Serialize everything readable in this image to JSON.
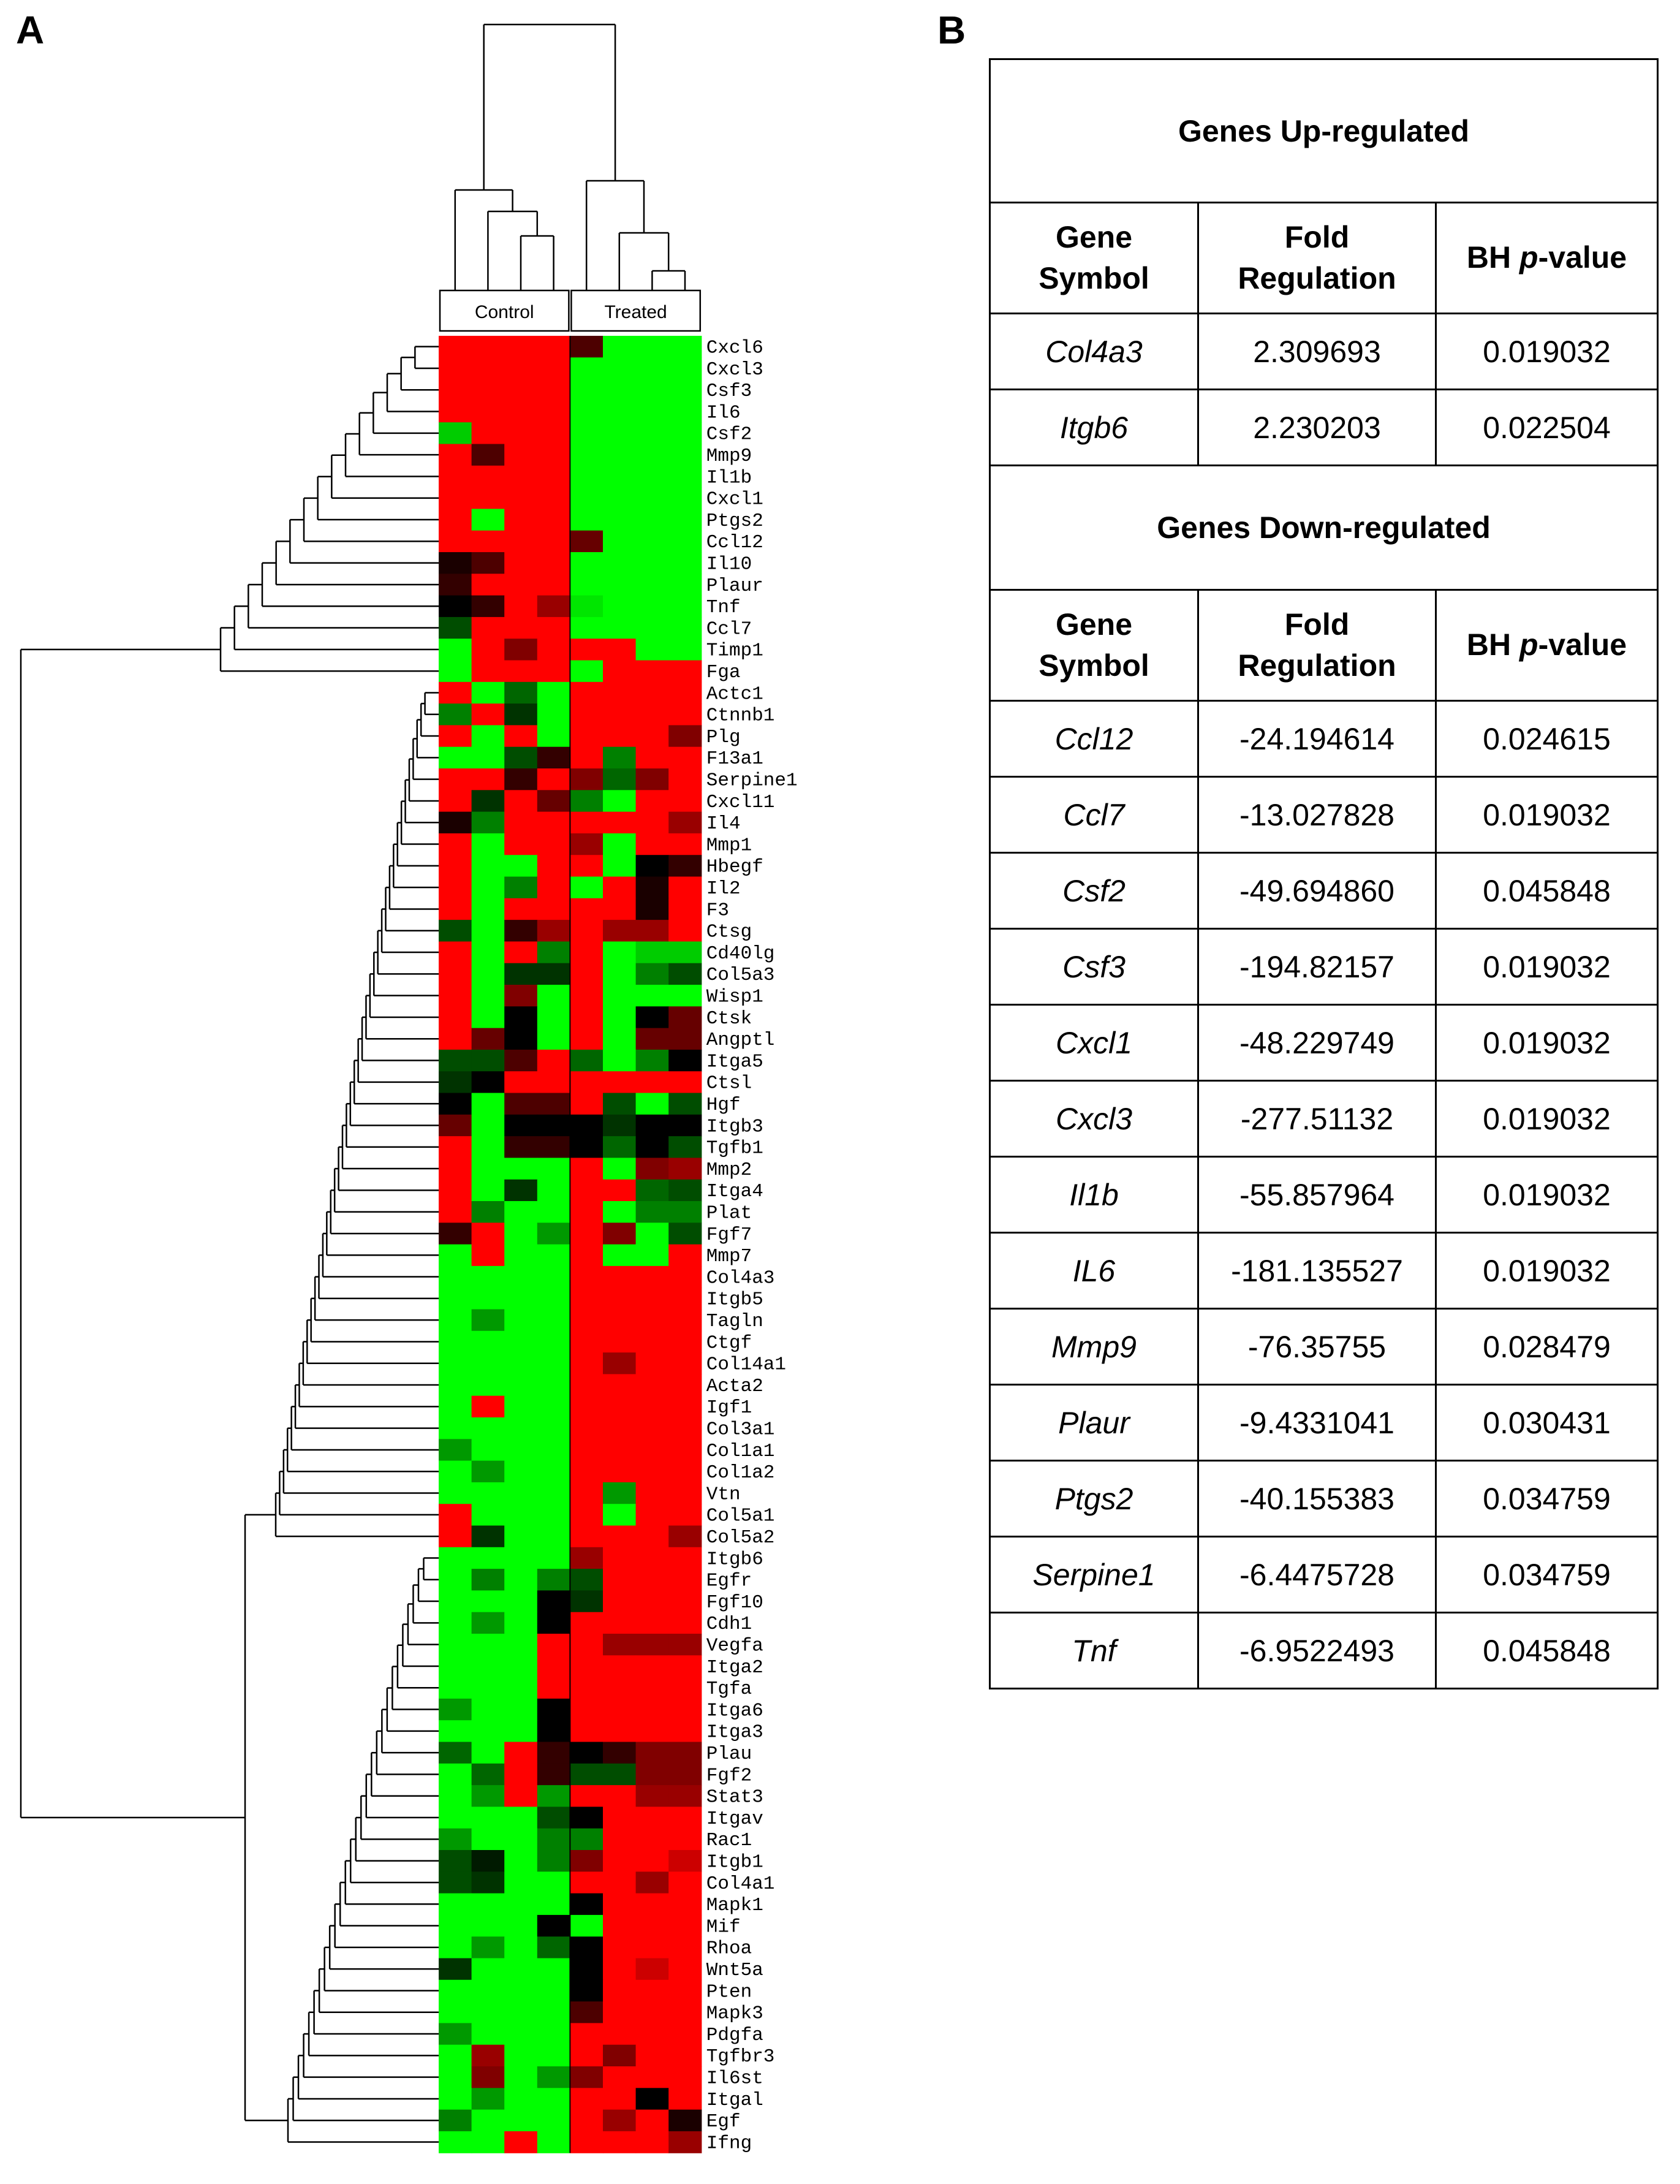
{
  "panels": {
    "a": "A",
    "b": "B"
  },
  "heatmap": {
    "groups": [
      "Control",
      "Treated"
    ],
    "genes": [
      "Cxcl6",
      "Cxcl3",
      "Csf3",
      "Il6",
      "Csf2",
      "Mmp9",
      "Il1b",
      "Cxcl1",
      "Ptgs2",
      "Ccl12",
      "Il10",
      "Plaur",
      "Tnf",
      "Ccl7",
      "Timp1",
      "Fga",
      "Actc1",
      "Ctnnb1",
      "Plg",
      "F13a1",
      "Serpine1",
      "Cxcl11",
      "Il4",
      "Mmp1",
      "Hbegf",
      "Il2",
      "F3",
      "Ctsg",
      "Cd40lg",
      "Col5a3",
      "Wisp1",
      "Ctsk",
      "Angptl",
      "Itga5",
      "Ctsl",
      "Hgf",
      "Itgb3",
      "Tgfb1",
      "Mmp2",
      "Itga4",
      "Plat",
      "Fgf7",
      "Mmp7",
      "Col4a3",
      "Itgb5",
      "Tagln",
      "Ctgf",
      "Col14a1",
      "Acta2",
      "Igf1",
      "Col3a1",
      "Col1a1",
      "Col1a2",
      "Vtn",
      "Col5a1",
      "Col5a2",
      "Itgb6",
      "Egfr",
      "Fgf10",
      "Cdh1",
      "Vegfa",
      "Itga2",
      "Tgfa",
      "Itga6",
      "Itga3",
      "Plau",
      "Fgf2",
      "Stat3",
      "Itgav",
      "Rac1",
      "Itgb1",
      "Col4a1",
      "Mapk1",
      "Mif",
      "Rhoa",
      "Wnt5a",
      "Pten",
      "Mapk3",
      "Pdgfa",
      "Tgfbr3",
      "Il6st",
      "Itgal",
      "Egf",
      "Ifng"
    ],
    "colors": {
      "up": "#ff0000",
      "down": "#00ff00",
      "neutral": "#000000"
    }
  },
  "chart_data": {
    "type": "heatmap",
    "groups": [
      "Control",
      "Treated"
    ],
    "samples_per_group": 4,
    "rows": [
      "Cxcl6",
      "Cxcl3",
      "Csf3",
      "Il6",
      "Csf2",
      "Mmp9",
      "Il1b",
      "Cxcl1",
      "Ptgs2",
      "Ccl12",
      "Il10",
      "Plaur",
      "Tnf",
      "Ccl7",
      "Timp1",
      "Fga",
      "Actc1",
      "Ctnnb1",
      "Plg",
      "F13a1",
      "Serpine1",
      "Cxcl11",
      "Il4",
      "Mmp1",
      "Hbegf",
      "Il2",
      "F3",
      "Ctsg",
      "Cd40lg",
      "Col5a3",
      "Wisp1",
      "Ctsk",
      "Angptl",
      "Itga5",
      "Ctsl",
      "Hgf",
      "Itgb3",
      "Tgfb1",
      "Mmp2",
      "Itga4",
      "Plat",
      "Fgf7",
      "Mmp7",
      "Col4a3",
      "Itgb5",
      "Tagln",
      "Ctgf",
      "Col14a1",
      "Acta2",
      "Igf1",
      "Col3a1",
      "Col1a1",
      "Col1a2",
      "Vtn",
      "Col5a1",
      "Col5a2",
      "Itgb6",
      "Egfr",
      "Fgf10",
      "Cdh1",
      "Vegfa",
      "Itga2",
      "Tgfa",
      "Itga6",
      "Itga3",
      "Plau",
      "Fgf2",
      "Stat3",
      "Itgav",
      "Rac1",
      "Itgb1",
      "Col4a1",
      "Mapk1",
      "Mif",
      "Rhoa",
      "Wnt5a",
      "Pten",
      "Mapk3",
      "Pdgfa",
      "Tgfbr3",
      "Il6st",
      "Itgal",
      "Egf",
      "Ifng"
    ],
    "values": [
      [
        1,
        1,
        1,
        1,
        0.3,
        -1,
        -1,
        -1
      ],
      [
        1,
        1,
        1,
        1,
        -1,
        -1,
        -1,
        -1
      ],
      [
        1,
        1,
        1,
        1,
        -1,
        -1,
        -1,
        -1
      ],
      [
        1,
        1,
        1,
        1,
        -1,
        -1,
        -1,
        -1
      ],
      [
        -0.8,
        1,
        1,
        1,
        -1,
        -1,
        -1,
        -1
      ],
      [
        1,
        0.3,
        1,
        1,
        -1,
        -1,
        -1,
        -1
      ],
      [
        1,
        1,
        1,
        1,
        -1,
        -1,
        -1,
        -1
      ],
      [
        1,
        1,
        1,
        1,
        -1,
        -1,
        -1,
        -1
      ],
      [
        1,
        -1,
        1,
        1,
        -1,
        -1,
        -1,
        -1
      ],
      [
        1,
        1,
        1,
        1,
        0.4,
        -1,
        -1,
        -1
      ],
      [
        0.1,
        0.3,
        1,
        1,
        -1,
        -1,
        -1,
        -1
      ],
      [
        0.2,
        1,
        1,
        1,
        -1,
        -1,
        -1,
        -1
      ],
      [
        0,
        0.2,
        1,
        0.6,
        -0.9,
        -1,
        -1,
        -1
      ],
      [
        -0.3,
        1,
        1,
        1,
        -1,
        -1,
        -1,
        -1
      ],
      [
        -1,
        1,
        0.5,
        1,
        1,
        1,
        -1,
        -1
      ],
      [
        -1,
        1,
        1,
        1,
        -1,
        1,
        1,
        1
      ],
      [
        1,
        -1,
        -0.4,
        -1,
        1,
        1,
        1,
        1
      ],
      [
        -0.5,
        1,
        -0.2,
        -1,
        1,
        1,
        1,
        1
      ],
      [
        1,
        -1,
        1,
        -1,
        1,
        1,
        1,
        0.5
      ],
      [
        -1,
        -1,
        -0.3,
        0.2,
        1,
        -0.5,
        1,
        1
      ],
      [
        1,
        1,
        0.2,
        1,
        0.5,
        -0.4,
        0.5,
        1
      ],
      [
        1,
        -0.2,
        1,
        0.4,
        -0.5,
        -1,
        1,
        1
      ],
      [
        0.1,
        -0.5,
        1,
        1,
        1,
        1,
        1,
        0.6
      ],
      [
        1,
        -1,
        1,
        1,
        0.6,
        -1,
        1,
        1
      ],
      [
        1,
        -1,
        -1,
        1,
        1,
        -1,
        0,
        0.2
      ],
      [
        1,
        -1,
        -0.5,
        1,
        -1,
        1,
        0.1,
        1
      ],
      [
        1,
        -1,
        1,
        1,
        1,
        1,
        0.1,
        1
      ],
      [
        -0.3,
        -1,
        0.2,
        0.6,
        1,
        0.6,
        0.6,
        1
      ],
      [
        1,
        -1,
        1,
        -0.5,
        1,
        -1,
        -0.8,
        -0.8
      ],
      [
        1,
        -1,
        -0.2,
        -0.2,
        1,
        -1,
        -0.5,
        -0.3
      ],
      [
        1,
        -1,
        0.5,
        -1,
        1,
        -1,
        -1,
        -1
      ],
      [
        1,
        -1,
        0,
        -1,
        1,
        -1,
        0,
        0.4
      ],
      [
        1,
        0.4,
        0,
        -1,
        1,
        -1,
        0.4,
        0.4
      ],
      [
        -0.3,
        -0.3,
        0.3,
        1,
        -0.4,
        -1,
        -0.5,
        0
      ],
      [
        -0.2,
        0,
        1,
        1,
        1,
        1,
        1,
        1
      ],
      [
        0,
        -1,
        0.3,
        0.3,
        1,
        -0.3,
        -1,
        -0.3
      ],
      [
        0.4,
        -1,
        0,
        0,
        0,
        -0.2,
        0,
        0
      ],
      [
        1,
        -1,
        0.2,
        0.2,
        0,
        -0.4,
        0,
        -0.3
      ],
      [
        1,
        -1,
        -1,
        -1,
        1,
        -1,
        0.5,
        0.6
      ],
      [
        1,
        -1,
        -0.2,
        -1,
        1,
        1,
        -0.4,
        -0.3
      ],
      [
        1,
        -0.5,
        -1,
        -1,
        1,
        -1,
        -0.5,
        -0.5
      ],
      [
        0.2,
        1,
        -1,
        -0.6,
        1,
        0.5,
        -1,
        -0.3
      ],
      [
        -1,
        1,
        -1,
        -1,
        1,
        -1,
        -1,
        1
      ],
      [
        -1,
        -1,
        -1,
        -1,
        1,
        1,
        1,
        1
      ],
      [
        -1,
        -1,
        -1,
        -1,
        1,
        1,
        1,
        1
      ],
      [
        -1,
        -0.6,
        -1,
        -1,
        1,
        1,
        1,
        1
      ],
      [
        -1,
        -1,
        -1,
        -1,
        1,
        1,
        1,
        1
      ],
      [
        -1,
        -1,
        -1,
        -1,
        1,
        0.6,
        1,
        1
      ],
      [
        -1,
        -1,
        -1,
        -1,
        1,
        1,
        1,
        1
      ],
      [
        -1,
        1,
        -1,
        -1,
        1,
        1,
        1,
        1
      ],
      [
        -1,
        -1,
        -1,
        -1,
        1,
        1,
        1,
        1
      ],
      [
        -0.6,
        -1,
        -1,
        -1,
        1,
        1,
        1,
        1
      ],
      [
        -1,
        -0.6,
        -1,
        -1,
        1,
        1,
        1,
        1
      ],
      [
        -1,
        -1,
        -1,
        -1,
        1,
        -0.6,
        1,
        1
      ],
      [
        1,
        -1,
        -1,
        -1,
        1,
        -1,
        1,
        1
      ],
      [
        1,
        -0.2,
        -1,
        -1,
        1,
        1,
        1,
        0.6
      ],
      [
        -1,
        -1,
        -1,
        -1,
        0.6,
        1,
        1,
        1
      ],
      [
        -1,
        -0.5,
        -1,
        -0.5,
        -0.3,
        1,
        1,
        1
      ],
      [
        -1,
        -1,
        -1,
        0,
        -0.2,
        1,
        1,
        1
      ],
      [
        -1,
        -0.6,
        -1,
        0,
        1,
        1,
        1,
        1
      ],
      [
        -1,
        -1,
        -1,
        1,
        1,
        0.6,
        0.6,
        0.6
      ],
      [
        -1,
        -1,
        -1,
        1,
        1,
        1,
        1,
        1
      ],
      [
        -1,
        -1,
        -1,
        1,
        1,
        1,
        1,
        1
      ],
      [
        -0.6,
        -1,
        -1,
        0,
        1,
        1,
        1,
        1
      ],
      [
        -1,
        -1,
        -1,
        0,
        1,
        1,
        1,
        1
      ],
      [
        -0.4,
        -1,
        1,
        0.2,
        0,
        0.2,
        0.5,
        0.5
      ],
      [
        -1,
        -0.4,
        1,
        0.2,
        -0.3,
        -0.3,
        0.5,
        0.5
      ],
      [
        -1,
        -0.6,
        1,
        -0.6,
        1,
        1,
        0.6,
        0.6
      ],
      [
        -1,
        -1,
        -1,
        -0.3,
        0,
        1,
        1,
        1
      ],
      [
        -0.6,
        -1,
        -1,
        -0.5,
        -0.5,
        1,
        1,
        1
      ],
      [
        -0.3,
        -0.1,
        -1,
        -0.5,
        0.5,
        1,
        1,
        0.8
      ],
      [
        -0.3,
        -0.2,
        -1,
        -1,
        1,
        1,
        0.6,
        1
      ],
      [
        -1,
        -1,
        -1,
        -1,
        0,
        1,
        1,
        1
      ],
      [
        -1,
        -1,
        -1,
        0,
        -1,
        1,
        1,
        1
      ],
      [
        -1,
        -0.6,
        -1,
        -0.4,
        0,
        1,
        1,
        1
      ],
      [
        -0.2,
        -1,
        -1,
        -1,
        0,
        1,
        0.8,
        1
      ],
      [
        -1,
        -1,
        -1,
        -1,
        0,
        1,
        1,
        1
      ],
      [
        -1,
        -1,
        -1,
        -1,
        0.3,
        1,
        1,
        1
      ],
      [
        -0.6,
        -1,
        -1,
        -1,
        1,
        1,
        1,
        1
      ],
      [
        -1,
        0.6,
        -1,
        -1,
        1,
        0.5,
        1,
        1
      ],
      [
        -1,
        0.5,
        -1,
        -0.6,
        0.5,
        1,
        1,
        1
      ],
      [
        -1,
        -0.6,
        -1,
        -1,
        1,
        1,
        0,
        1
      ],
      [
        -0.5,
        -1,
        -1,
        -1,
        1,
        0.6,
        1,
        0.1
      ],
      [
        -1,
        -1,
        1,
        -1,
        1,
        1,
        1,
        0.6
      ]
    ]
  },
  "tables": {
    "up": {
      "title": "Genes Up-regulated",
      "headers": {
        "symbol": [
          "Gene",
          "Symbol"
        ],
        "fold": [
          "Fold",
          "Regulation"
        ],
        "p_prefix": "BH ",
        "p_italic": "p",
        "p_suffix": "-value"
      },
      "rows": [
        {
          "symbol": "Col4a3",
          "fold": "2.309693",
          "p": "0.019032"
        },
        {
          "symbol": "Itgb6",
          "fold": "2.230203",
          "p": "0.022504"
        }
      ]
    },
    "down": {
      "title": "Genes Down-regulated",
      "headers": {
        "symbol": [
          "Gene",
          "Symbol"
        ],
        "fold": [
          "Fold",
          "Regulation"
        ],
        "p_prefix": "BH ",
        "p_italic": "p",
        "p_suffix": "-value"
      },
      "rows": [
        {
          "symbol": "Ccl12",
          "fold": "-24.194614",
          "p": "0.024615"
        },
        {
          "symbol": "Ccl7",
          "fold": "-13.027828",
          "p": "0.019032"
        },
        {
          "symbol": "Csf2",
          "fold": "-49.694860",
          "p": "0.045848"
        },
        {
          "symbol": "Csf3",
          "fold": "-194.82157",
          "p": "0.019032"
        },
        {
          "symbol": "Cxcl1",
          "fold": "-48.229749",
          "p": "0.019032"
        },
        {
          "symbol": "Cxcl3",
          "fold": "-277.51132",
          "p": "0.019032"
        },
        {
          "symbol": "Il1b",
          "fold": "-55.857964",
          "p": "0.019032"
        },
        {
          "symbol": "IL6",
          "fold": "-181.135527",
          "p": "0.019032"
        },
        {
          "symbol": "Mmp9",
          "fold": "-76.35755",
          "p": "0.028479"
        },
        {
          "symbol": "Plaur",
          "fold": "-9.4331041",
          "p": "0.030431"
        },
        {
          "symbol": "Ptgs2",
          "fold": "-40.155383",
          "p": "0.034759"
        },
        {
          "symbol": "Serpine1",
          "fold": "-6.4475728",
          "p": "0.034759"
        },
        {
          "symbol": "Tnf",
          "fold": "-6.9522493",
          "p": "0.045848"
        }
      ]
    }
  }
}
